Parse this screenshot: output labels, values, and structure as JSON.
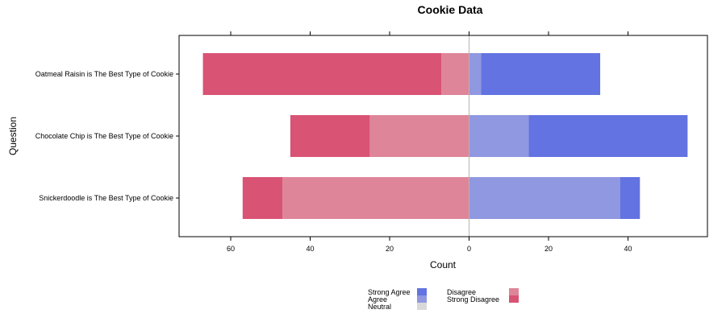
{
  "chart_data": {
    "type": "bar",
    "orientation": "horizontal-diverging",
    "title": "Cookie Data",
    "xlabel": "Count",
    "ylabel": "Question",
    "xlim": [
      -73,
      60
    ],
    "x_ticks": [
      -60,
      -40,
      -20,
      0,
      20,
      40
    ],
    "x_tick_labels": [
      "60",
      "40",
      "20",
      "0",
      "20",
      "40"
    ],
    "grid": false,
    "legend_position": "bottom",
    "categories": [
      "Oatmeal Raisin is The Best Type of Cookie",
      "Chocolate Chip is The Best Type of Cookie",
      "Snickerdoodle is The Best Type of Cookie"
    ],
    "series": [
      {
        "name": "Strong Disagree",
        "color": "#D95374",
        "values": [
          60,
          20,
          10
        ]
      },
      {
        "name": "Disagree",
        "color": "#DF8599",
        "values": [
          7,
          25,
          47
        ]
      },
      {
        "name": "Neutral",
        "color": "#D9D9D9",
        "values": [
          0,
          0,
          0
        ]
      },
      {
        "name": "Agree",
        "color": "#8F98E0",
        "values": [
          3,
          15,
          38
        ]
      },
      {
        "name": "Strong Agree",
        "color": "#6373E1",
        "values": [
          30,
          40,
          5
        ]
      }
    ],
    "legend": {
      "left_column": [
        "Strong Agree",
        "Agree",
        "Neutral"
      ],
      "right_column": [
        "Disagree",
        "Strong Disagree"
      ]
    }
  }
}
